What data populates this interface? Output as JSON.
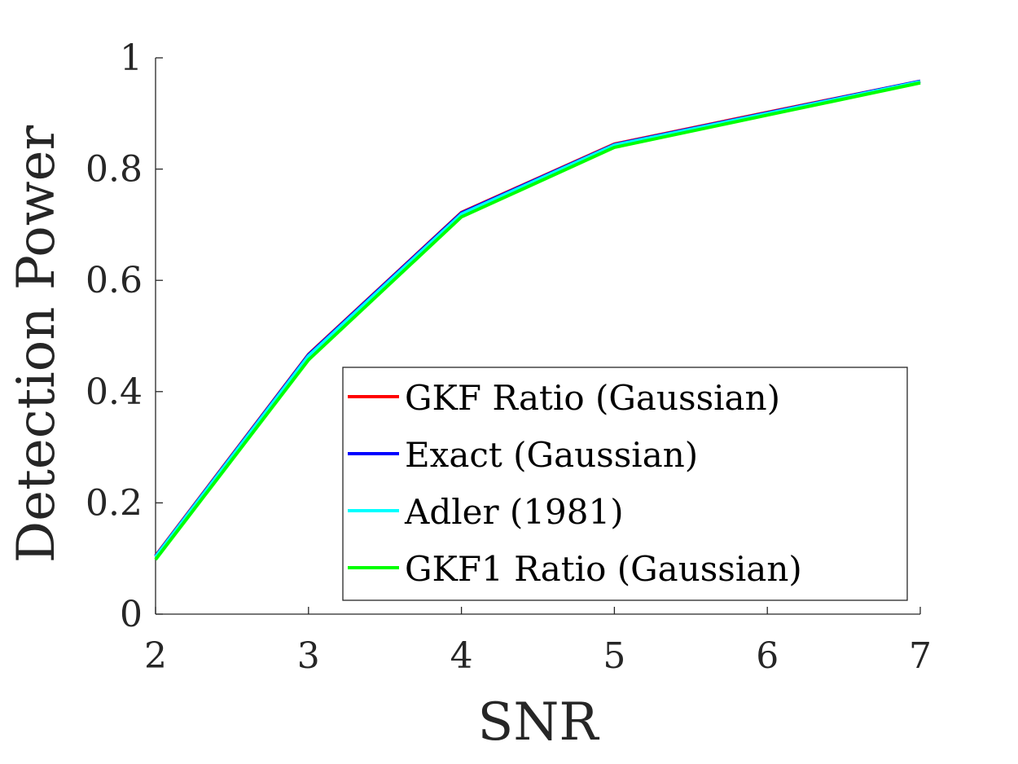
{
  "chart_data": {
    "type": "line",
    "title": "",
    "xlabel": "SNR",
    "ylabel": "Detection Power",
    "xlim": [
      2,
      7
    ],
    "ylim": [
      0,
      1
    ],
    "xticks": [
      2,
      3,
      4,
      5,
      6,
      7
    ],
    "yticks": [
      0,
      0.2,
      0.4,
      0.6,
      0.8,
      1
    ],
    "ytick_labels": [
      "0",
      "0.2",
      "0.4",
      "0.6",
      "0.8",
      "1"
    ],
    "grid": false,
    "legend_position": "bottom-right",
    "x": [
      2,
      3,
      4,
      5,
      6,
      7
    ],
    "series": [
      {
        "name": "GKF Ratio (Gaussian)",
        "color": "#ff0000",
        "values": [
          0.105,
          0.467,
          0.722,
          0.845,
          0.902,
          0.958
        ]
      },
      {
        "name": "Exact (Gaussian)",
        "color": "#0000ff",
        "values": [
          0.104,
          0.466,
          0.721,
          0.844,
          0.901,
          0.958
        ]
      },
      {
        "name": "Adler (1981)",
        "color": "#00ffff",
        "values": [
          0.103,
          0.464,
          0.719,
          0.843,
          0.9,
          0.957
        ]
      },
      {
        "name": "GKF1 Ratio (Gaussian)",
        "color": "#00ff00",
        "values": [
          0.098,
          0.457,
          0.714,
          0.839,
          0.897,
          0.955
        ]
      }
    ]
  }
}
